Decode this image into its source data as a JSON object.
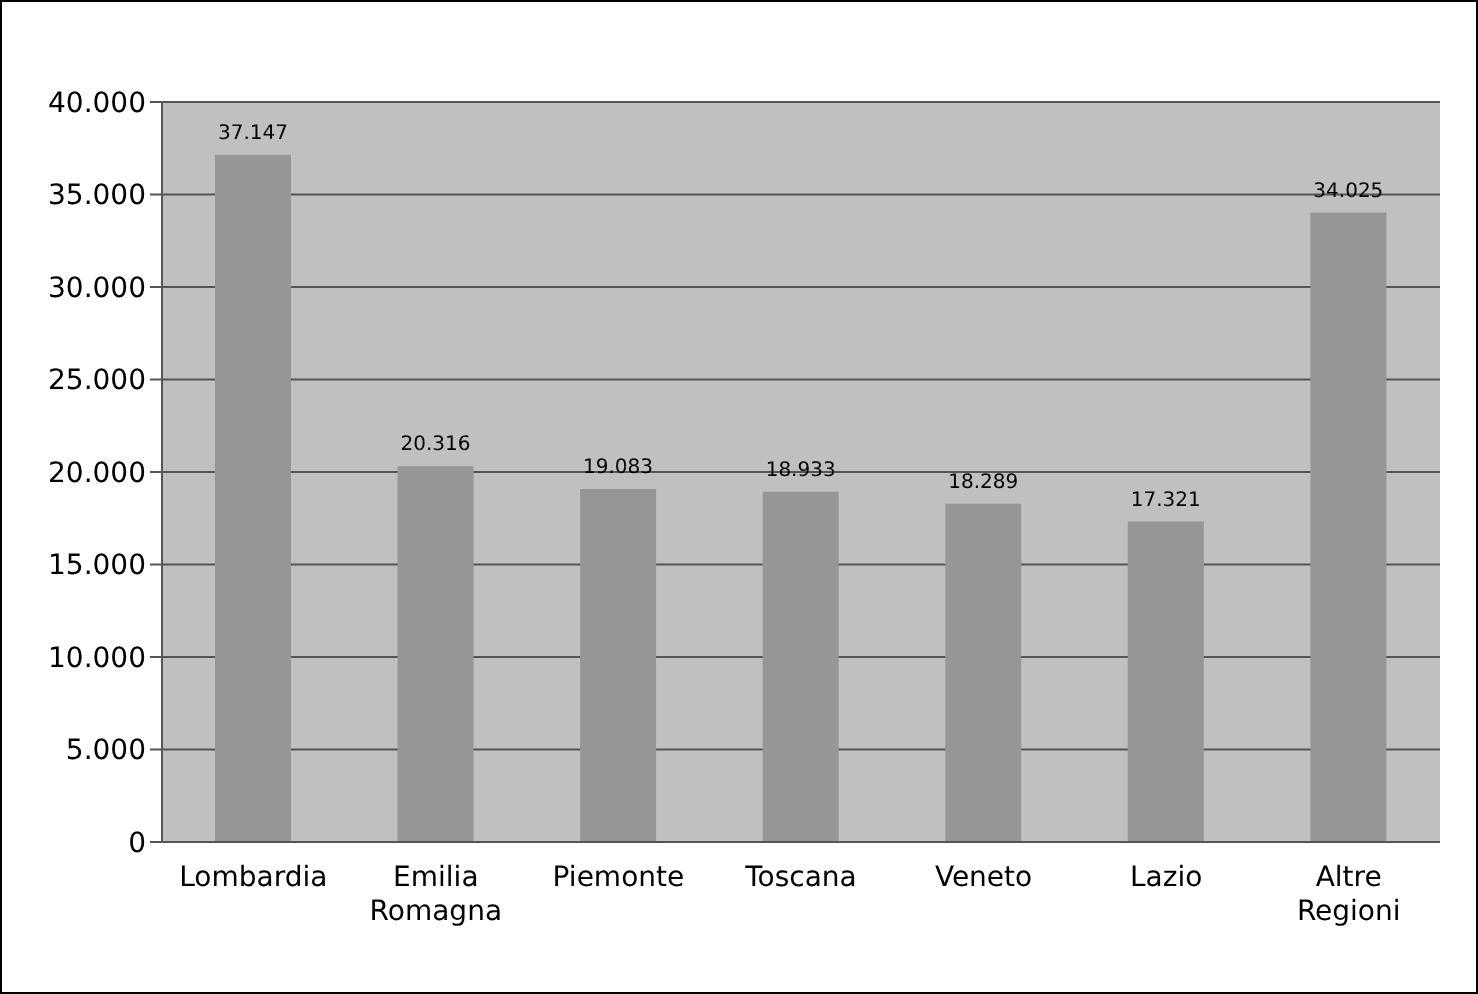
{
  "chart_data": {
    "type": "bar",
    "categories": [
      "Lombardia",
      "Emilia Romagna",
      "Piemonte",
      "Toscana",
      "Veneto",
      "Lazio",
      "Altre Regioni"
    ],
    "values": [
      37147,
      20316,
      19083,
      18933,
      18289,
      17321,
      34025
    ],
    "value_labels": [
      "37.147",
      "20.316",
      "19.083",
      "18.933",
      "18.289",
      "17.321",
      "34.025"
    ],
    "color": "#969696",
    "ylim": [
      0,
      40000
    ],
    "yticks": [
      {
        "value": 0,
        "label": "0"
      },
      {
        "value": 5000,
        "label": "5.000"
      },
      {
        "value": 10000,
        "label": "10.000"
      },
      {
        "value": 15000,
        "label": "15.000"
      },
      {
        "value": 20000,
        "label": "20.000"
      },
      {
        "value": 25000,
        "label": "25.000"
      },
      {
        "value": 30000,
        "label": "30.000"
      },
      {
        "value": 35000,
        "label": "35.000"
      },
      {
        "value": 40000,
        "label": "40.000"
      }
    ],
    "grid": "y",
    "legend": false
  }
}
